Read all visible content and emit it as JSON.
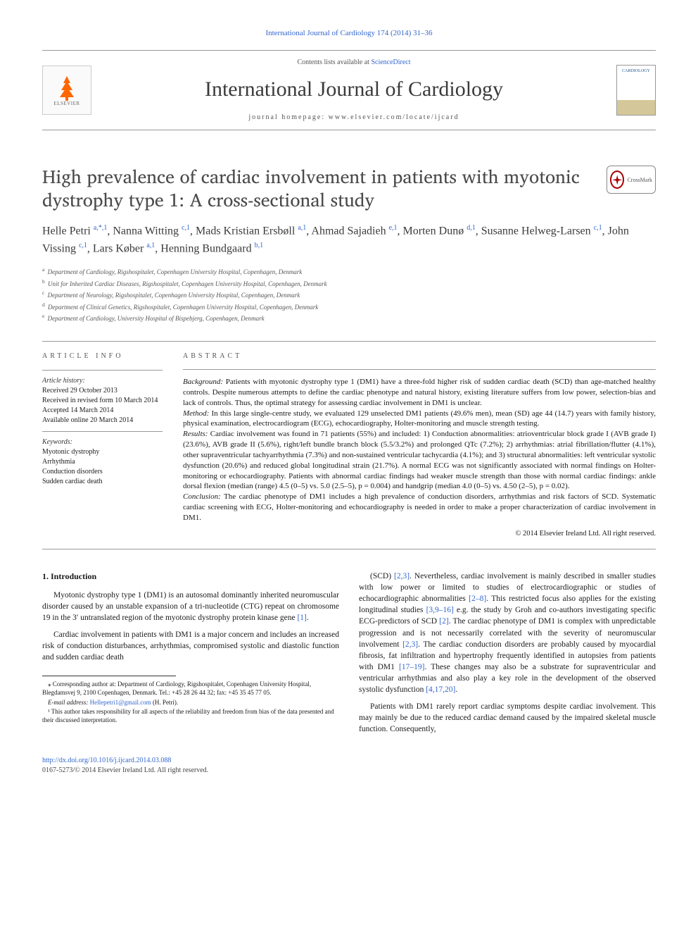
{
  "journal_link_text": "International Journal of Cardiology 174 (2014) 31–36",
  "header": {
    "contents_prefix": "Contents lists available at ",
    "contents_link": "ScienceDirect",
    "journal_title": "International Journal of Cardiology",
    "homepage_label": "journal homepage: www.elsevier.com/locate/ijcard",
    "elsevier_label": "ELSEVIER",
    "cover_label": "CARDIOLOGY"
  },
  "article_title": "High prevalence of cardiac involvement in patients with myotonic dystrophy type 1: A cross-sectional study",
  "crossmark_label": "CrossMark",
  "authors_html": "Helle Petri <sup><a>a,</a><a>*,</a><a>1</a></sup>, Nanna Witting <sup><a>c,</a><a>1</a></sup>, Mads Kristian Ersbøll <sup><a>a,</a><a>1</a></sup>, Ahmad Sajadieh <sup><a>e,</a><a>1</a></sup>, Morten Dunø <sup><a>d,</a><a>1</a></sup>, Susanne Helweg-Larsen <sup><a>c,</a><a>1</a></sup>, John Vissing <sup><a>c,</a><a>1</a></sup>, Lars Køber <sup><a>a,</a><a>1</a></sup>, Henning Bundgaard <sup><a>b,</a><a>1</a></sup>",
  "affiliations": [
    {
      "key": "a",
      "text": "Department of Cardiology, Rigshospitalet, Copenhagen University Hospital, Copenhagen, Denmark"
    },
    {
      "key": "b",
      "text": "Unit for Inherited Cardiac Diseases, Rigshospitalet, Copenhagen University Hospital, Copenhagen, Denmark"
    },
    {
      "key": "c",
      "text": "Department of Neurology, Rigshospitalet, Copenhagen University Hospital, Copenhagen, Denmark"
    },
    {
      "key": "d",
      "text": "Department of Clinical Genetics, Rigshospitalet, Copenhagen University Hospital, Copenhagen, Denmark"
    },
    {
      "key": "e",
      "text": "Department of Cardiology, University Hospital of Bispebjerg, Copenhagen, Denmark"
    }
  ],
  "article_info": {
    "heading": "article info",
    "history_label": "Article history:",
    "history": [
      "Received 29 October 2013",
      "Received in revised form 10 March 2014",
      "Accepted 14 March 2014",
      "Available online 20 March 2014"
    ],
    "keywords_label": "Keywords:",
    "keywords": [
      "Myotonic dystrophy",
      "Arrhythmia",
      "Conduction disorders",
      "Sudden cardiac death"
    ]
  },
  "abstract": {
    "heading": "abstract",
    "parts": [
      {
        "label": "Background:",
        "text": " Patients with myotonic dystrophy type 1 (DM1) have a three-fold higher risk of sudden cardiac death (SCD) than age-matched healthy controls. Despite numerous attempts to define the cardiac phenotype and natural history, existing literature suffers from low power, selection-bias and lack of controls. Thus, the optimal strategy for assessing cardiac involvement in DM1 is unclear."
      },
      {
        "label": "Method:",
        "text": " In this large single-centre study, we evaluated 129 unselected DM1 patients (49.6% men), mean (SD) age 44 (14.7) years with family history, physical examination, electrocardiogram (ECG), echocardiography, Holter-monitoring and muscle strength testing."
      },
      {
        "label": "Results:",
        "text": " Cardiac involvement was found in 71 patients (55%) and included: 1) Conduction abnormalities: atrioventricular block grade I (AVB grade I) (23.6%), AVB grade II (5.6%), right/left bundle branch block (5.5/3.2%) and prolonged QTc (7.2%); 2) arrhythmias: atrial fibrillation/flutter (4.1%), other supraventricular tachyarrhythmia (7.3%) and non-sustained ventricular tachycardia (4.1%); and 3) structural abnormalities: left ventricular systolic dysfunction (20.6%) and reduced global longitudinal strain (21.7%). A normal ECG was not significantly associated with normal findings on Holter-monitoring or echocardiography. Patients with abnormal cardiac findings had weaker muscle strength than those with normal cardiac findings: ankle dorsal flexion (median (range) 4.5 (0–5) vs. 5.0 (2.5–5), p = 0.004) and handgrip (median 4.0 (0–5) vs. 4.50 (2–5), p = 0.02)."
      },
      {
        "label": "Conclusion:",
        "text": " The cardiac phenotype of DM1 includes a high prevalence of conduction disorders, arrhythmias and risk factors of SCD. Systematic cardiac screening with ECG, Holter-monitoring and echocardiography is needed in order to make a proper characterization of cardiac involvement in DM1."
      }
    ],
    "copyright": "© 2014 Elsevier Ireland Ltd. All right reserved."
  },
  "intro": {
    "heading": "1. Introduction",
    "paragraphs": [
      "Myotonic dystrophy type 1 (DM1) is an autosomal dominantly inherited neuromuscular disorder caused by an unstable expansion of a tri-nucleotide (CTG) repeat on chromosome 19 in the 3′ untranslated region of the myotonic dystrophy protein kinase gene <a class='ref-link'>[1]</a>.",
      "Cardiac involvement in patients with DM1 is a major concern and includes an increased risk of conduction disturbances, arrhythmias, compromised systolic and diastolic function and sudden cardiac death",
      "(SCD) <a class='ref-link'>[2,3]</a>. Nevertheless, cardiac involvement is mainly described in smaller studies with low power or limited to studies of electrocardiographic or studies of echocardiographic abnormalities <a class='ref-link'>[2–8]</a>. This restricted focus also applies for the existing longitudinal studies <a class='ref-link'>[3,9–16]</a> e.g. the study by Groh and co-authors investigating specific ECG-predictors of SCD <a class='ref-link'>[2]</a>. The cardiac phenotype of DM1 is complex with unpredictable progression and is not necessarily correlated with the severity of neuromuscular involvement <a class='ref-link'>[2,3]</a>. The cardiac conduction disorders are probably caused by myocardial fibrosis, fat infiltration and hypertrophy frequently identified in autopsies from patients with DM1 <a class='ref-link'>[17–19]</a>. These changes may also be a substrate for supraventricular and ventricular arrhythmias and also play a key role in the development of the observed systolic dysfunction <a class='ref-link'>[4,17,20]</a>.",
      "Patients with DM1 rarely report cardiac symptoms despite cardiac involvement. This may mainly be due to the reduced cardiac demand caused by the impaired skeletal muscle function. Consequently,"
    ]
  },
  "footnotes": {
    "corresponding": "⁎ Corresponding author at: Department of Cardiology, Rigshospitalet, Copenhagen University Hospital, Blegdamsvej 9, 2100 Copenhagen, Denmark. Tel.: +45 28 26 44 32; fax: +45 35 45 77 05.",
    "email_label": "E-mail address: ",
    "email_value": "Hellepetri1@gmail.com",
    "email_suffix": " (H. Petri).",
    "author_note": "¹ This author takes responsibility for all aspects of the reliability and freedom from bias of the data presented and their discussed interpretation."
  },
  "footer": {
    "doi": "http://dx.doi.org/10.1016/j.ijcard.2014.03.088",
    "copyright": "0167-5273/© 2014 Elsevier Ireland Ltd. All right reserved."
  },
  "colors": {
    "link": "#3366cc",
    "text": "#1a1a1a",
    "elsevier_orange": "#ff6600"
  }
}
